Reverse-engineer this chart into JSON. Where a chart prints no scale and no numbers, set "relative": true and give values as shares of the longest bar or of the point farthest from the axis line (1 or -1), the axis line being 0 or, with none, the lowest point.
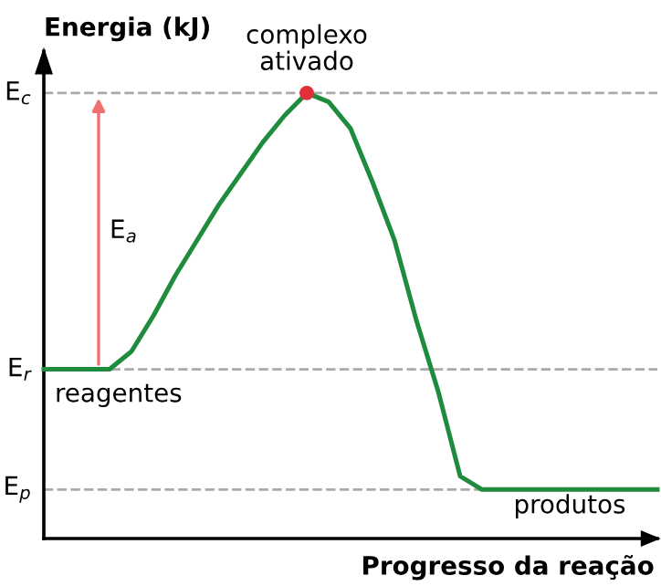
{
  "chart_data": {
    "type": "line",
    "relative": true,
    "xlabel": "Progresso da reação",
    "ylabel": "Energia (kJ)",
    "categories": [
      null,
      null,
      null,
      null,
      null,
      null,
      null,
      null,
      null,
      null,
      null,
      null,
      null,
      null,
      null,
      null,
      null,
      null,
      null,
      null,
      null,
      null,
      null,
      null,
      null,
      null,
      null,
      null,
      null
    ],
    "series": [
      {
        "color": "#1e8c3c",
        "values": [
          0.38,
          0.38,
          0.38,
          0.38,
          0.42,
          0.5,
          0.59,
          0.67,
          0.75,
          0.82,
          0.89,
          0.95,
          1,
          0.98,
          0.92,
          0.8,
          0.67,
          0.49,
          0.33,
          0.14,
          0.11,
          0.11,
          0.11,
          0.11,
          0.11,
          0.11,
          0.11,
          0.11,
          0.11
        ]
      }
    ],
    "ref_lines": [
      {
        "axis": "y",
        "value": 1,
        "label": "E$_{c}$",
        "color": "#aaaaaa",
        "line_style": "dashed"
      },
      {
        "axis": "y",
        "value": 0.38,
        "label": "E$_{r}$",
        "color": "#aaaaaa",
        "line_style": "dashed"
      },
      {
        "axis": "y",
        "value": 0.11,
        "label": "E$_{p}$",
        "color": "#aaaaaa",
        "line_style": "dashed"
      }
    ],
    "annotations": [
      "complexo\nativado",
      "reagentes",
      "produtos",
      "E$_{a}$"
    ],
    "marker": "none",
    "line_style": "solid"
  }
}
